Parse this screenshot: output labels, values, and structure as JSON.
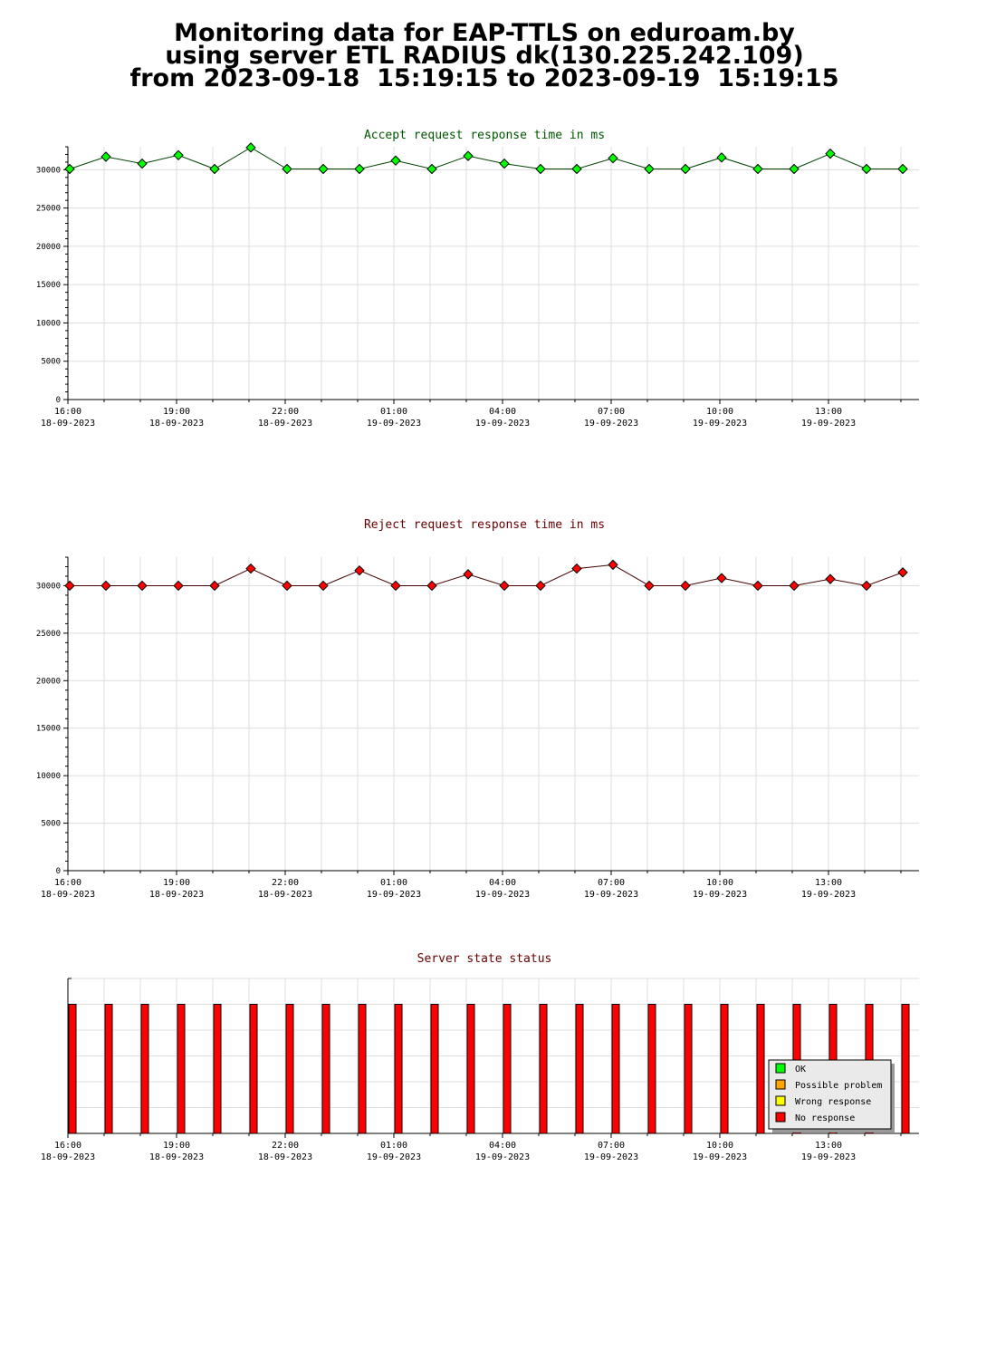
{
  "title_lines": [
    "Monitoring data for EAP-TTLS on eduroam.by",
    "using server ETL RADIUS dk(130.225.242.109)",
    "from 2023-09-18  15:19:15 to 2023-09-19  15:19:15"
  ],
  "chart_data": [
    {
      "type": "line",
      "title": "Accept request response time in ms",
      "title_color": "#005500",
      "line_color": "#004400",
      "marker_color": "#00ff00",
      "x_hours": [
        0,
        1,
        2,
        3,
        4,
        5,
        6,
        7,
        8,
        9,
        10,
        11,
        12,
        13,
        14,
        15,
        16,
        17,
        18,
        19,
        20,
        21,
        22,
        23
      ],
      "values": [
        30100,
        31700,
        30800,
        31900,
        30100,
        32900,
        30100,
        30100,
        30100,
        31200,
        30100,
        31800,
        30800,
        30100,
        30100,
        31500,
        30100,
        30100,
        31600,
        30100,
        30100,
        32100,
        30100,
        30100
      ],
      "ylim": [
        0,
        33000
      ],
      "yticks": [
        0,
        5000,
        10000,
        15000,
        20000,
        25000,
        30000
      ]
    },
    {
      "type": "line",
      "title": "Reject request response time in ms",
      "title_color": "#660000",
      "line_color": "#440000",
      "marker_color": "#ff0000",
      "x_hours": [
        0,
        1,
        2,
        3,
        4,
        5,
        6,
        7,
        8,
        9,
        10,
        11,
        12,
        13,
        14,
        15,
        16,
        17,
        18,
        19,
        20,
        21,
        22,
        23
      ],
      "values": [
        30000,
        30000,
        30000,
        30000,
        30000,
        31800,
        30000,
        30000,
        31600,
        30000,
        30000,
        31200,
        30000,
        30000,
        31800,
        32200,
        30000,
        30000,
        30800,
        30000,
        30000,
        30700,
        30000,
        31400
      ],
      "ylim": [
        0,
        33000
      ],
      "yticks": [
        0,
        5000,
        10000,
        15000,
        20000,
        25000,
        30000
      ]
    },
    {
      "type": "bar",
      "title": "Server state status",
      "title_color": "#660000",
      "x_hours": [
        0,
        1,
        2,
        3,
        4,
        5,
        6,
        7,
        8,
        9,
        10,
        11,
        12,
        13,
        14,
        15,
        16,
        17,
        18,
        19,
        20,
        21,
        22,
        23
      ],
      "values": [
        5,
        5,
        5,
        5,
        5,
        5,
        5,
        5,
        5,
        5,
        5,
        5,
        5,
        5,
        5,
        5,
        5,
        5,
        5,
        5,
        5,
        5,
        5,
        5
      ],
      "bar_color": "#ff0000",
      "ylim": [
        0,
        6
      ],
      "legend": [
        {
          "label": "OK",
          "color": "#00ff00"
        },
        {
          "label": "Possible problem",
          "color": "#ffa500"
        },
        {
          "label": "Wrong response",
          "color": "#ffff00"
        },
        {
          "label": "No response",
          "color": "#ff0000"
        }
      ],
      "legend_position": "bottom-right"
    }
  ],
  "xticks": [
    {
      "time": "16:00",
      "date": "18-09-2023"
    },
    {
      "time": "19:00",
      "date": "18-09-2023"
    },
    {
      "time": "22:00",
      "date": "18-09-2023"
    },
    {
      "time": "01:00",
      "date": "19-09-2023"
    },
    {
      "time": "04:00",
      "date": "19-09-2023"
    },
    {
      "time": "07:00",
      "date": "19-09-2023"
    },
    {
      "time": "10:00",
      "date": "19-09-2023"
    },
    {
      "time": "13:00",
      "date": "19-09-2023"
    }
  ]
}
